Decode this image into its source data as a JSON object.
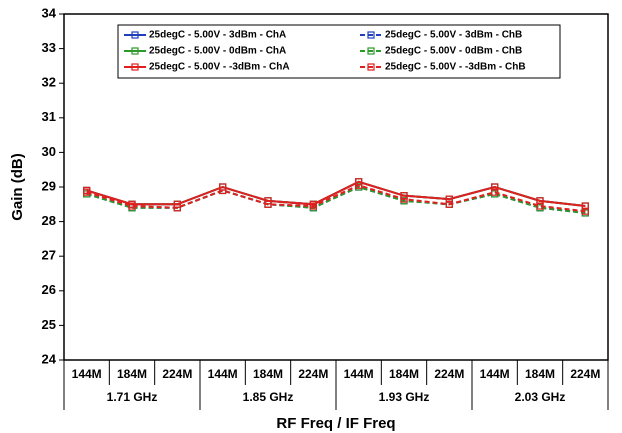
{
  "chart_data": {
    "type": "line",
    "xlabel": "RF Freq / IF Freq",
    "ylabel": "Gain (dB)",
    "categories": [
      "144M",
      "184M",
      "224M",
      "144M",
      "184M",
      "224M",
      "144M",
      "184M",
      "224M",
      "144M",
      "184M",
      "224M"
    ],
    "groups": [
      "1.71 GHz",
      "1.85 GHz",
      "1.93 GHz",
      "2.03 GHz"
    ],
    "ylim": [
      24,
      34
    ],
    "yticks": [
      24,
      25,
      26,
      27,
      28,
      29,
      30,
      31,
      32,
      33,
      34
    ],
    "series": [
      {
        "name": "25degC - 5.00V - 3dBm - ChA",
        "color": "#1f3fbf",
        "dashed": false,
        "values": [
          28.9,
          28.5,
          28.5,
          29.0,
          28.6,
          28.5,
          29.15,
          28.75,
          28.65,
          29.0,
          28.6,
          28.45
        ]
      },
      {
        "name": "25degC - 5.00V - 3dBm - ChB",
        "color": "#1f3fbf",
        "dashed": true,
        "values": [
          28.8,
          28.4,
          28.4,
          28.9,
          28.5,
          28.4,
          29.0,
          28.6,
          28.5,
          28.8,
          28.4,
          28.25
        ]
      },
      {
        "name": "25degC - 5.00V - 0dBm - ChA",
        "color": "#2a9a2a",
        "dashed": false,
        "values": [
          28.9,
          28.5,
          28.5,
          29.0,
          28.6,
          28.5,
          29.15,
          28.75,
          28.65,
          29.0,
          28.6,
          28.45
        ]
      },
      {
        "name": "25degC - 5.00V - 0dBm - ChB",
        "color": "#2a9a2a",
        "dashed": true,
        "values": [
          28.8,
          28.4,
          28.4,
          28.9,
          28.5,
          28.4,
          29.0,
          28.6,
          28.5,
          28.8,
          28.4,
          28.25
        ]
      },
      {
        "name": "25degC - 5.00V - -3dBm - ChA",
        "color": "#e02020",
        "dashed": false,
        "values": [
          28.9,
          28.5,
          28.5,
          29.0,
          28.6,
          28.5,
          29.15,
          28.75,
          28.65,
          29.0,
          28.6,
          28.45
        ]
      },
      {
        "name": "25degC - 5.00V - -3dBm - ChB",
        "color": "#e02020",
        "dashed": true,
        "values": [
          28.85,
          28.45,
          28.4,
          28.9,
          28.5,
          28.45,
          29.05,
          28.65,
          28.5,
          28.85,
          28.45,
          28.3
        ]
      }
    ]
  }
}
